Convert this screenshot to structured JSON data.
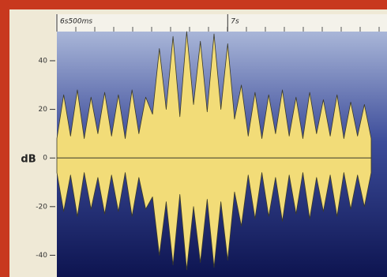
{
  "chart_data": {
    "type": "waveform",
    "ylabel": "dB",
    "x": [
      6.5,
      6.52,
      6.54,
      6.56,
      6.58,
      6.6,
      6.62,
      6.64,
      6.66,
      6.68,
      6.7,
      6.72,
      6.74,
      6.76,
      6.78,
      6.8,
      6.82,
      6.84,
      6.86,
      6.88,
      6.9,
      6.92,
      6.94,
      6.96,
      6.98,
      7.0,
      7.02,
      7.04,
      7.06,
      7.08,
      7.1,
      7.12,
      7.14,
      7.16,
      7.18,
      7.2,
      7.22,
      7.24,
      7.26,
      7.28,
      7.3,
      7.32,
      7.34,
      7.36,
      7.38,
      7.4,
      7.42
    ],
    "series": [
      {
        "color": "#f2dc78",
        "values": [
          8,
          26,
          9,
          28,
          8,
          25,
          10,
          27,
          9,
          26,
          8,
          28,
          10,
          25,
          18,
          45,
          20,
          50,
          17,
          52,
          22,
          48,
          19,
          51,
          20,
          47,
          16,
          30,
          9,
          27,
          8,
          26,
          10,
          28,
          9,
          25,
          8,
          27,
          10,
          24,
          9,
          26,
          8,
          23,
          9,
          22,
          8
        ]
      },
      {
        "color": "#f2dc78",
        "values": [
          -6,
          -22,
          -7,
          -24,
          -6,
          -21,
          -8,
          -23,
          -7,
          -22,
          -6,
          -24,
          -8,
          -21,
          -16,
          -40,
          -18,
          -44,
          -15,
          -46,
          -20,
          -43,
          -17,
          -45,
          -18,
          -42,
          -14,
          -28,
          -7,
          -25,
          -6,
          -24,
          -8,
          -26,
          -7,
          -23,
          -6,
          -25,
          -8,
          -22,
          -7,
          -24,
          -6,
          -21,
          -7,
          -20,
          -6
        ]
      }
    ],
    "xlim": [
      6.5,
      7.42
    ],
    "xticks": [
      {
        "value": 6.5,
        "label": "6s500ms"
      },
      {
        "value": 7,
        "label": "7s"
      }
    ],
    "ylim": [
      -47,
      52
    ],
    "yticks": [
      40,
      20,
      0,
      -20,
      -40
    ]
  }
}
